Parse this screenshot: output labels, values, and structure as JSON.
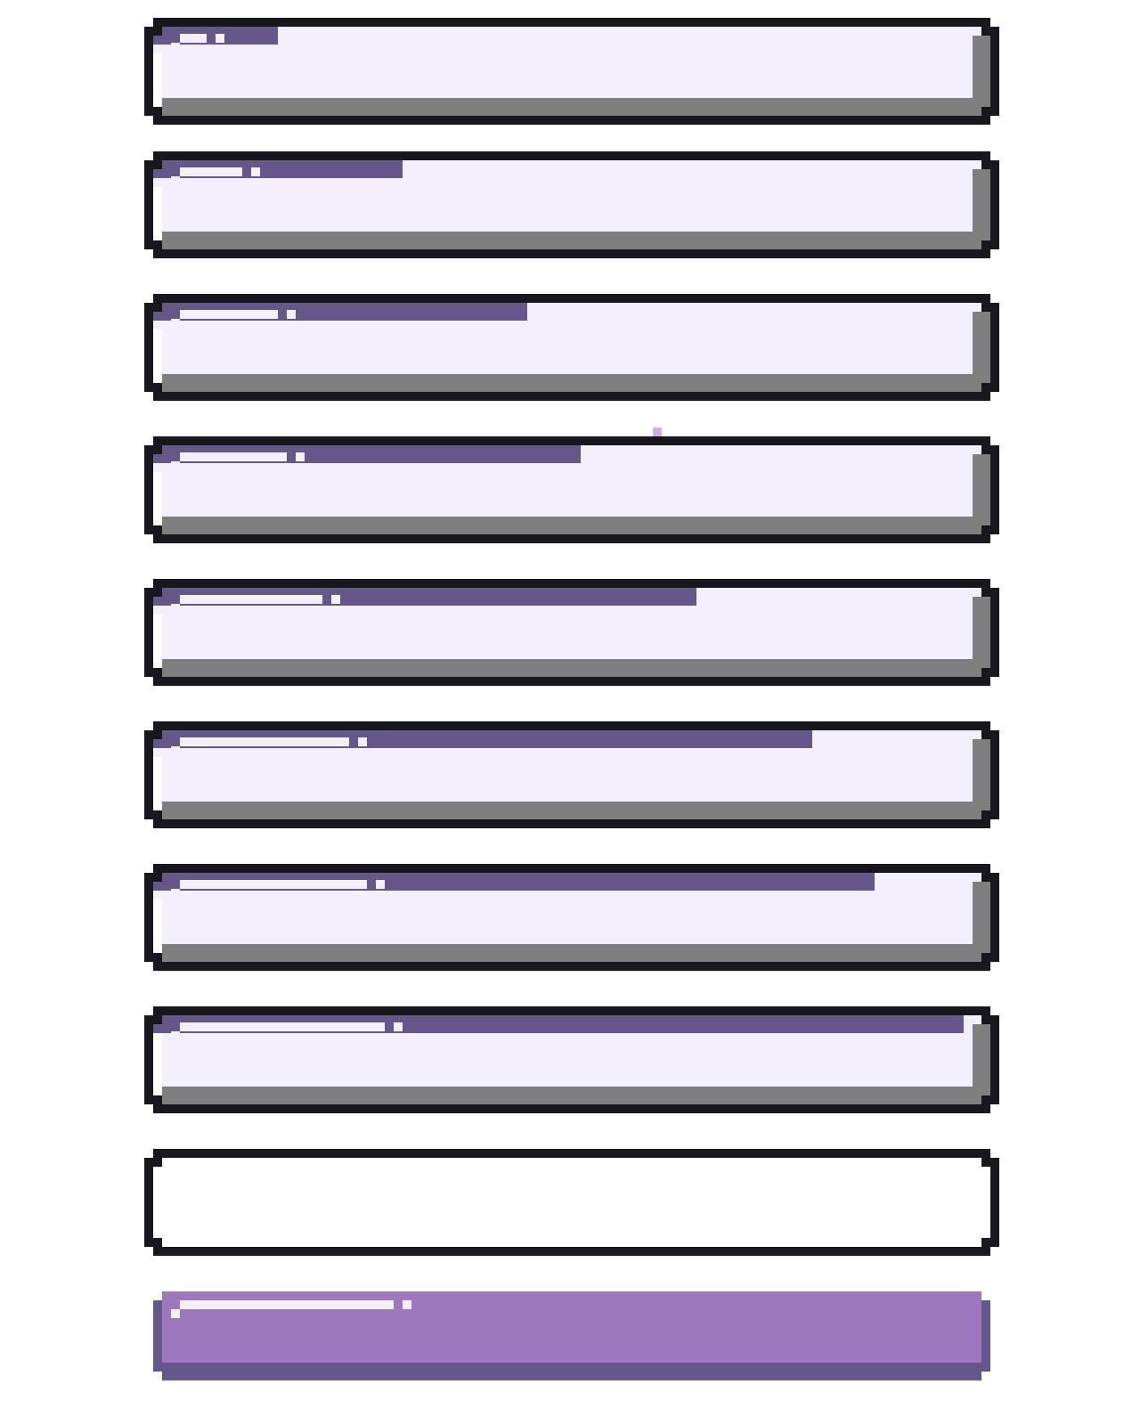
{
  "asset_sheet": {
    "bars": [
      {
        "name": "progress-bar-1",
        "fill_fraction": 0.14,
        "style": "framed"
      },
      {
        "name": "progress-bar-2",
        "fill_fraction": 0.3,
        "style": "framed"
      },
      {
        "name": "progress-bar-3",
        "fill_fraction": 0.46,
        "style": "framed"
      },
      {
        "name": "progress-bar-4",
        "fill_fraction": 0.52,
        "style": "framed"
      },
      {
        "name": "progress-bar-5",
        "fill_fraction": 0.67,
        "style": "framed"
      },
      {
        "name": "progress-bar-6",
        "fill_fraction": 0.81,
        "style": "framed"
      },
      {
        "name": "progress-bar-7",
        "fill_fraction": 0.89,
        "style": "framed"
      },
      {
        "name": "progress-bar-8",
        "fill_fraction": 1.0,
        "style": "framed"
      },
      {
        "name": "progress-bar-empty-frame",
        "fill_fraction": 0.0,
        "style": "empty-frame"
      },
      {
        "name": "progress-bar-fill-only",
        "fill_fraction": 1.0,
        "style": "fill-only"
      }
    ]
  },
  "colors": {
    "outline": "#17171d",
    "track": "#f3effd",
    "track_shade": "#7f7f7f",
    "fill": "#9d78bf",
    "fill_shade": "#635887",
    "highlight": "#f3effd",
    "sparkle": "#cdb1e1",
    "background": "#ffffff"
  }
}
